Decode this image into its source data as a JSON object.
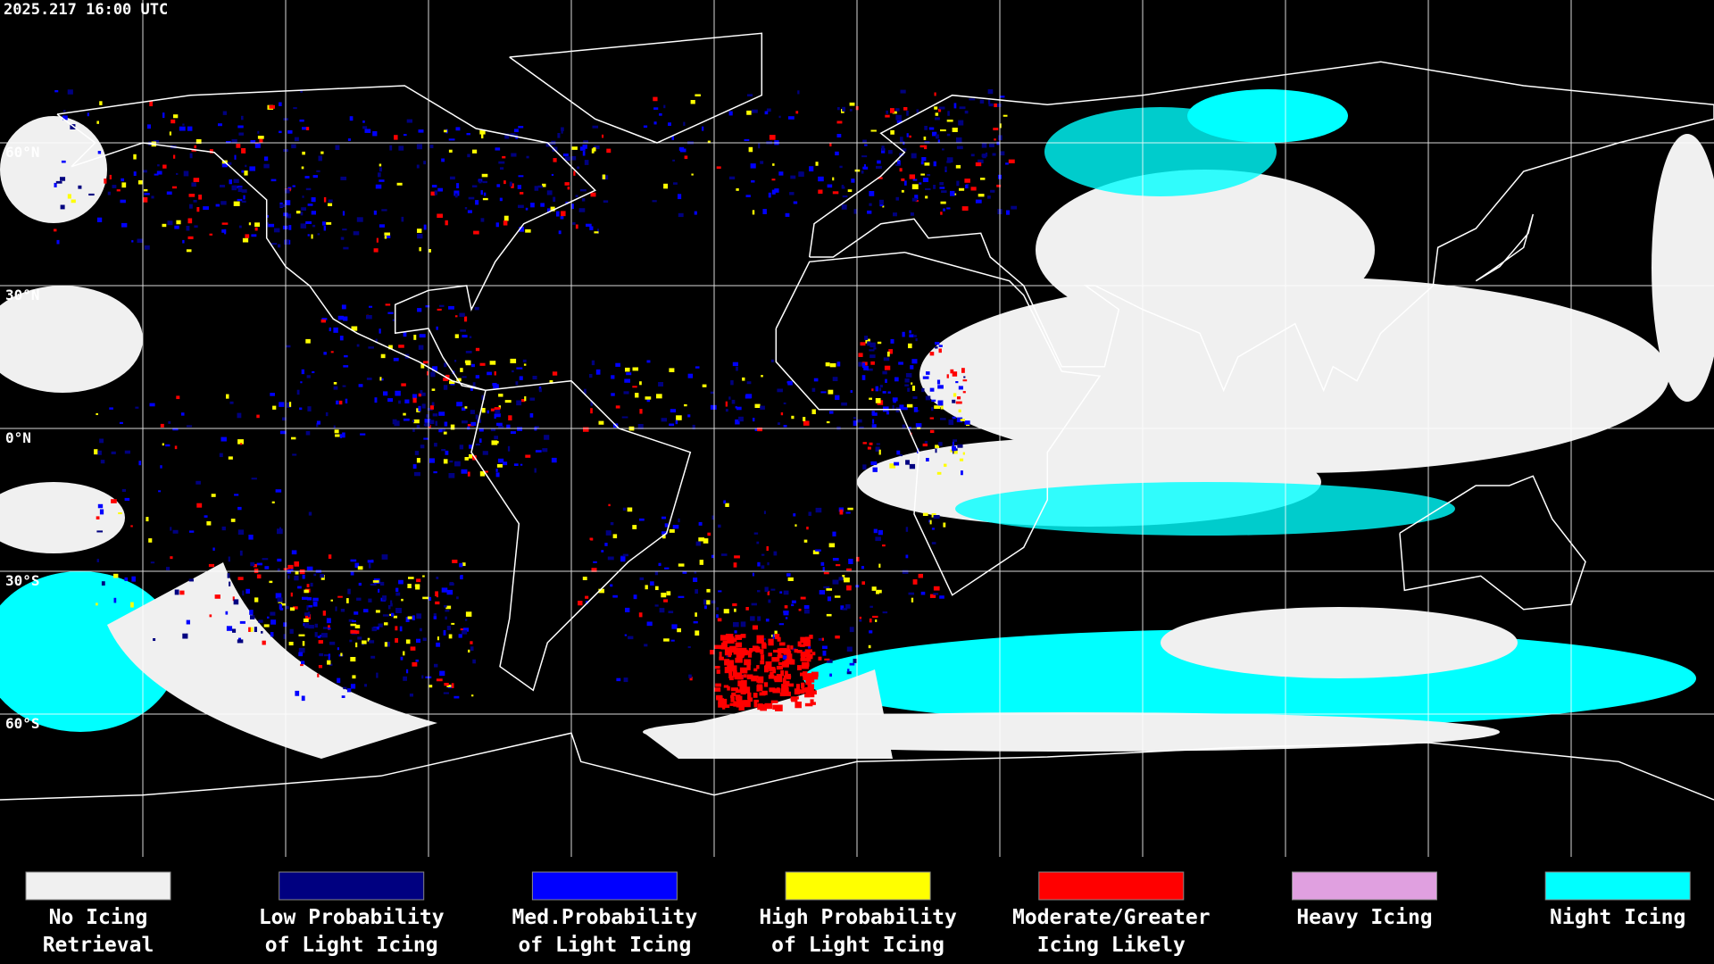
{
  "timestamp": "2025.217 16:00 UTC",
  "latitude_labels": [
    "60°N",
    "30°N",
    "0°N",
    "30°S",
    "60°S"
  ],
  "legend": [
    {
      "lines": [
        "No Icing",
        "Retrieval"
      ],
      "color": "#f0f0f0"
    },
    {
      "lines": [
        "Low Probability",
        "of Light Icing"
      ],
      "color": "#000080"
    },
    {
      "lines": [
        "Med.Probability",
        "of Light Icing"
      ],
      "color": "#0000ff"
    },
    {
      "lines": [
        "High Probability",
        "of Light Icing"
      ],
      "color": "#ffff00"
    },
    {
      "lines": [
        "Moderate/Greater",
        "Icing Likely"
      ],
      "color": "#ff0000"
    },
    {
      "lines": [
        "Heavy Icing"
      ],
      "color": "#e0a0e0"
    },
    {
      "lines": [
        "Night Icing"
      ],
      "color": "#00ffff"
    }
  ]
}
